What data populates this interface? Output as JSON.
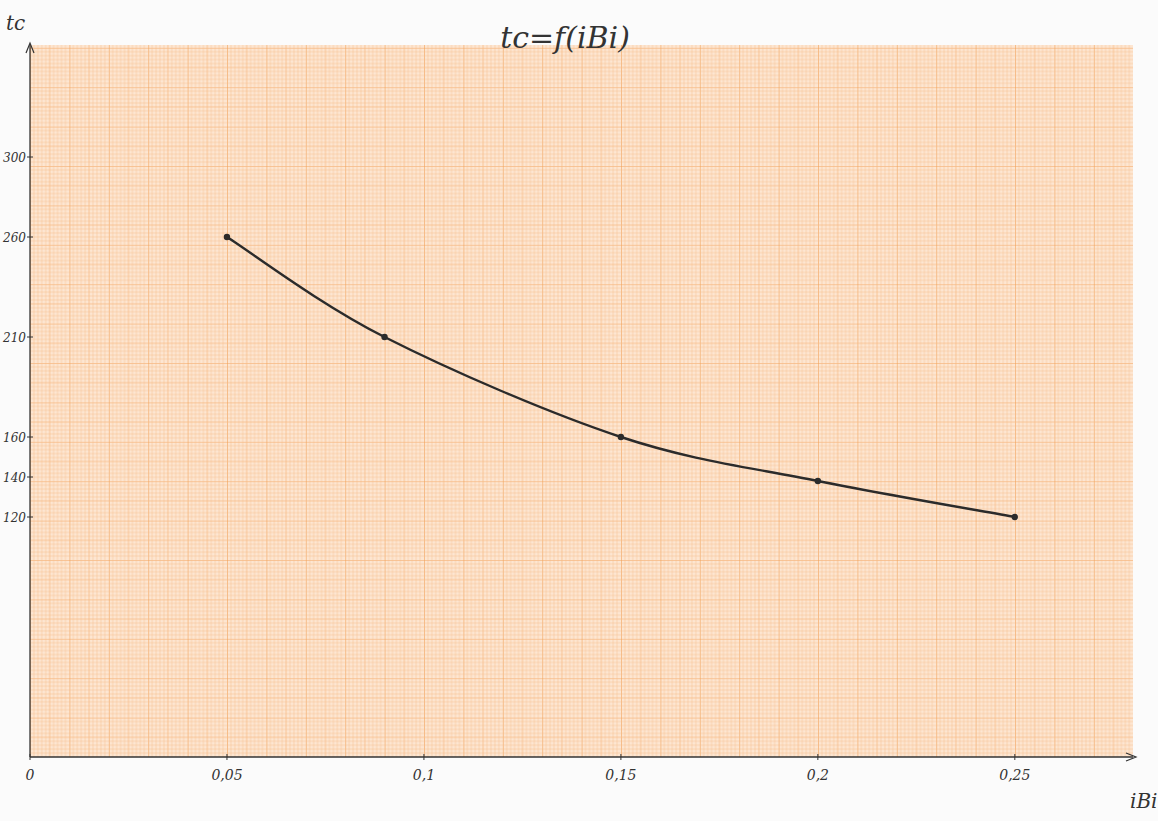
{
  "chart_data": {
    "type": "line",
    "title": "tc=f(iBi)",
    "x_label": "iBi",
    "y_label": "tc",
    "x": [
      0.05,
      0.09,
      0.15,
      0.2,
      0.25
    ],
    "values": [
      260,
      210,
      160,
      138,
      120
    ],
    "color": "#2b2b2b",
    "marker": "dot",
    "line_style": "solid",
    "xlim": [
      0,
      0.28
    ],
    "ylim": [
      0,
      356
    ],
    "xticks": [
      {
        "value": 0,
        "label": "0"
      },
      {
        "value": 0.05,
        "label": "0,05"
      },
      {
        "value": 0.1,
        "label": "0,1"
      },
      {
        "value": 0.15,
        "label": "0,15"
      },
      {
        "value": 0.2,
        "label": "0,2"
      },
      {
        "value": 0.25,
        "label": "0,25"
      }
    ],
    "yticks": [
      120,
      140,
      160,
      210,
      260,
      300
    ],
    "grid": true
  }
}
